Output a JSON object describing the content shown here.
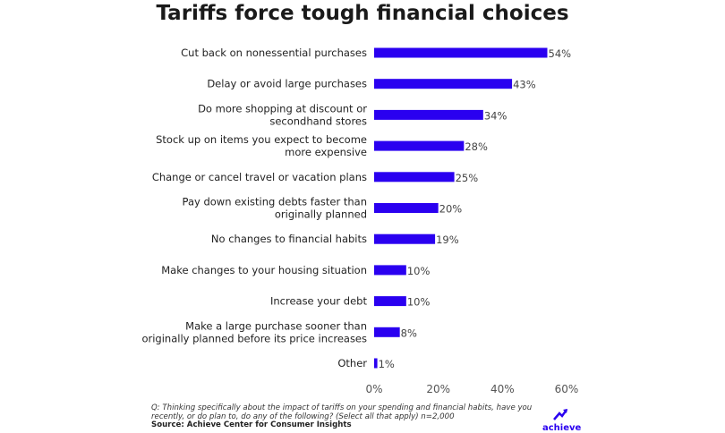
{
  "chart_data": {
    "type": "bar",
    "orientation": "horizontal",
    "title": "Tariffs force tough financial choices",
    "categories": [
      [
        "Cut back on nonessential purchases"
      ],
      [
        "Delay or avoid large purchases"
      ],
      [
        "Do more shopping at discount or",
        "secondhand stores"
      ],
      [
        "Stock up on items you expect to become",
        "more expensive"
      ],
      [
        "Change or cancel travel or vacation plans"
      ],
      [
        "Pay down existing debts faster than",
        "originally planned"
      ],
      [
        "No changes to financial habits"
      ],
      [
        "Make changes to your housing situation"
      ],
      [
        "Increase your debt"
      ],
      [
        "Make a large purchase sooner than",
        "originally planned before its price increases"
      ],
      [
        "Other"
      ]
    ],
    "values": [
      54,
      43,
      34,
      28,
      25,
      20,
      19,
      10,
      10,
      8,
      1
    ],
    "value_labels": [
      "54%",
      "43%",
      "34%",
      "28%",
      "25%",
      "20%",
      "19%",
      "10%",
      "10%",
      "8%",
      "1%"
    ],
    "xlim": [
      0,
      60
    ],
    "xticks": [
      "0%",
      "20%",
      "40%",
      "60%"
    ],
    "xtick_values": [
      0,
      20,
      40,
      60
    ],
    "grid": false,
    "bar_color": "#2a00f0"
  },
  "footer": {
    "note": "Q: Thinking specifically about the impact of tariffs on your spending and financial habits, have you recently, or do plan to, do any of the following? (Select all that apply) n=2,000",
    "source": "Source: Achieve Center for Consumer Insights",
    "logo": "achieve"
  }
}
